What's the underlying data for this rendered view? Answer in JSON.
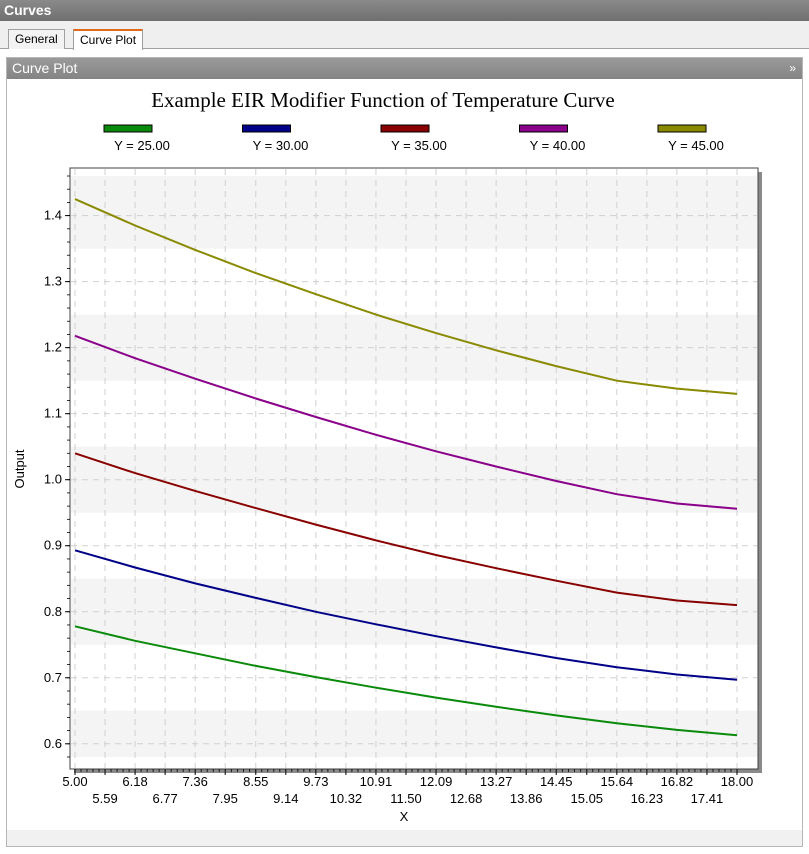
{
  "window": {
    "title": "Curves"
  },
  "tabs": [
    {
      "label": "General"
    },
    {
      "label": "Curve Plot"
    }
  ],
  "panel": {
    "title": "Curve Plot",
    "collapse_glyph": "»"
  },
  "chart_data": {
    "type": "line",
    "title": "Example EIR Modifier Function of Temperature Curve",
    "xlabel": "X",
    "ylabel": "Output",
    "xlim": [
      5.0,
      18.0
    ],
    "ylim": [
      0.58,
      1.46
    ],
    "x_ticks": [
      "5.00",
      "5.59",
      "6.18",
      "6.77",
      "7.36",
      "7.95",
      "8.55",
      "9.14",
      "9.73",
      "10.32",
      "10.91",
      "11.50",
      "12.09",
      "12.68",
      "13.27",
      "13.86",
      "14.45",
      "15.05",
      "15.64",
      "16.23",
      "16.82",
      "17.41",
      "18.00"
    ],
    "y_ticks": [
      "0.6",
      "0.7",
      "0.8",
      "0.9",
      "1.0",
      "1.1",
      "1.2",
      "1.3",
      "1.4"
    ],
    "grid": true,
    "legend_position": "top",
    "x": [
      5.0,
      6.18,
      7.36,
      8.55,
      9.73,
      10.91,
      12.09,
      13.27,
      14.45,
      15.64,
      16.82,
      18.0
    ],
    "series": [
      {
        "name": "Y = 25.00",
        "color": "#0a8a0a",
        "values": [
          0.778,
          0.756,
          0.737,
          0.718,
          0.701,
          0.685,
          0.67,
          0.656,
          0.643,
          0.631,
          0.621,
          0.613
        ]
      },
      {
        "name": "Y = 30.00",
        "color": "#000088",
        "values": [
          0.893,
          0.867,
          0.843,
          0.821,
          0.8,
          0.781,
          0.763,
          0.746,
          0.73,
          0.716,
          0.705,
          0.697
        ]
      },
      {
        "name": "Y = 35.00",
        "color": "#880000",
        "values": [
          1.04,
          1.01,
          0.983,
          0.957,
          0.932,
          0.908,
          0.886,
          0.866,
          0.847,
          0.829,
          0.817,
          0.81
        ]
      },
      {
        "name": "Y = 40.00",
        "color": "#8a008a",
        "values": [
          1.218,
          1.184,
          1.153,
          1.123,
          1.095,
          1.068,
          1.043,
          1.02,
          0.998,
          0.978,
          0.964,
          0.956
        ]
      },
      {
        "name": "Y = 45.00",
        "color": "#8a8a00",
        "values": [
          1.425,
          1.385,
          1.348,
          1.313,
          1.281,
          1.25,
          1.222,
          1.196,
          1.172,
          1.15,
          1.138,
          1.13
        ]
      }
    ]
  }
}
